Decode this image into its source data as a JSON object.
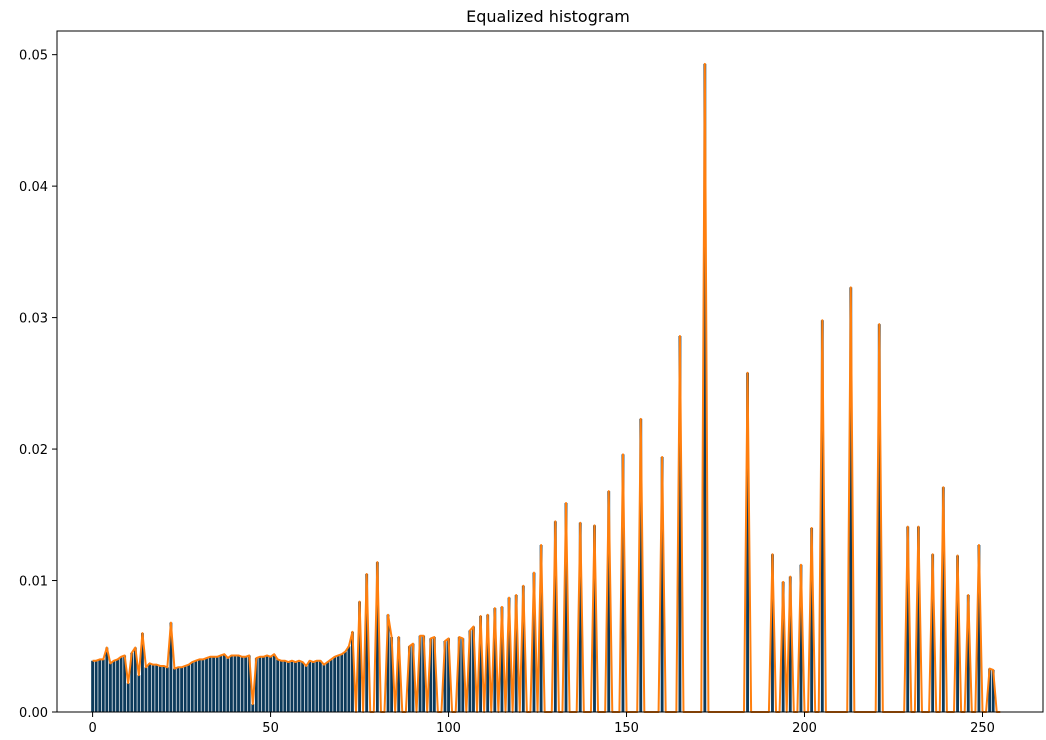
{
  "chart_data": {
    "type": "bar",
    "title": "Equalized histogram",
    "xlabel": "",
    "ylabel": "",
    "xlim": [
      -10,
      267
    ],
    "ylim": [
      0,
      0.0518
    ],
    "xticks": [
      0,
      50,
      100,
      150,
      200,
      250
    ],
    "yticks": [
      0.0,
      0.01,
      0.02,
      0.03,
      0.04,
      0.05
    ],
    "ytick_labels": [
      "0.00",
      "0.01",
      "0.02",
      "0.03",
      "0.04",
      "0.05"
    ],
    "grid": false,
    "bar_color": "#0c3a5b",
    "line_color": "#ff7f0e",
    "x": [
      0,
      1,
      2,
      3,
      4,
      5,
      6,
      7,
      8,
      9,
      10,
      11,
      12,
      13,
      14,
      15,
      16,
      17,
      18,
      19,
      20,
      21,
      22,
      23,
      24,
      25,
      26,
      27,
      28,
      29,
      30,
      31,
      32,
      33,
      34,
      35,
      36,
      37,
      38,
      39,
      40,
      41,
      42,
      43,
      44,
      45,
      46,
      47,
      48,
      49,
      50,
      51,
      52,
      53,
      54,
      55,
      56,
      57,
      58,
      59,
      60,
      61,
      62,
      63,
      64,
      65,
      66,
      67,
      68,
      69,
      70,
      71,
      72,
      73,
      74,
      75,
      76,
      77,
      78,
      79,
      80,
      81,
      82,
      83,
      84,
      85,
      86,
      87,
      88,
      89,
      90,
      91,
      92,
      93,
      94,
      95,
      96,
      97,
      98,
      99,
      100,
      101,
      102,
      103,
      104,
      105,
      106,
      107,
      108,
      109,
      110,
      111,
      112,
      113,
      114,
      115,
      116,
      117,
      118,
      119,
      120,
      121,
      122,
      123,
      124,
      125,
      126,
      127,
      128,
      129,
      130,
      131,
      132,
      133,
      134,
      135,
      136,
      137,
      138,
      139,
      140,
      141,
      142,
      143,
      144,
      145,
      146,
      147,
      148,
      149,
      150,
      151,
      152,
      153,
      154,
      155,
      156,
      157,
      158,
      159,
      160,
      161,
      162,
      163,
      164,
      165,
      166,
      167,
      168,
      169,
      170,
      171,
      172,
      173,
      174,
      175,
      176,
      177,
      178,
      179,
      180,
      181,
      182,
      183,
      184,
      185,
      186,
      187,
      188,
      189,
      190,
      191,
      192,
      193,
      194,
      195,
      196,
      197,
      198,
      199,
      200,
      201,
      202,
      203,
      204,
      205,
      206,
      207,
      208,
      209,
      210,
      211,
      212,
      213,
      214,
      215,
      216,
      217,
      218,
      219,
      220,
      221,
      222,
      223,
      224,
      225,
      226,
      227,
      228,
      229,
      230,
      231,
      232,
      233,
      234,
      235,
      236,
      237,
      238,
      239,
      240,
      241,
      242,
      243,
      244,
      245,
      246,
      247,
      248,
      249,
      250,
      251,
      252,
      253,
      254,
      255
    ],
    "values": [
      0.0039,
      0.0039,
      0.004,
      0.004,
      0.0049,
      0.0037,
      0.0039,
      0.004,
      0.0042,
      0.0043,
      0.0022,
      0.0045,
      0.0049,
      0.0028,
      0.006,
      0.0034,
      0.0037,
      0.0036,
      0.0036,
      0.0035,
      0.0035,
      0.0034,
      0.0068,
      0.0033,
      0.0034,
      0.0034,
      0.0035,
      0.0036,
      0.0038,
      0.0039,
      0.004,
      0.004,
      0.0041,
      0.0042,
      0.0042,
      0.0042,
      0.0043,
      0.0044,
      0.0041,
      0.0043,
      0.0043,
      0.0043,
      0.0042,
      0.0042,
      0.0043,
      0.0006,
      0.0041,
      0.0042,
      0.0042,
      0.0043,
      0.0042,
      0.0044,
      0.004,
      0.0039,
      0.0039,
      0.0038,
      0.0039,
      0.0038,
      0.0039,
      0.0038,
      0.0035,
      0.0039,
      0.0038,
      0.0039,
      0.0039,
      0.0036,
      0.0038,
      0.004,
      0.0042,
      0.0043,
      0.0044,
      0.0046,
      0.005,
      0.0061,
      0.0,
      0.0084,
      0.0,
      0.0105,
      0.0,
      0.0,
      0.0114,
      0.0,
      0.0,
      0.0074,
      0.0057,
      0.0,
      0.0057,
      0.0,
      0.0,
      0.005,
      0.0052,
      0.0,
      0.0058,
      0.0058,
      0.0,
      0.0056,
      0.0057,
      0.0,
      0.0,
      0.0054,
      0.0056,
      0.0,
      0.0,
      0.0057,
      0.0056,
      0.0,
      0.0062,
      0.0065,
      0.0,
      0.0073,
      0.0,
      0.0074,
      0.0,
      0.0079,
      0.0,
      0.008,
      0.0,
      0.0087,
      0.0,
      0.0089,
      0.0,
      0.0096,
      0.0,
      0.0,
      0.0106,
      0.0,
      0.0127,
      0.0,
      0.0,
      0.0,
      0.0145,
      0.0,
      0.0,
      0.0159,
      0.0,
      0.0,
      0.0,
      0.0144,
      0.0,
      0.0,
      0.0,
      0.0142,
      0.0,
      0.0,
      0.0,
      0.0168,
      0.0,
      0.0,
      0.0,
      0.0196,
      0.0,
      0.0,
      0.0,
      0.0,
      0.0223,
      0.0,
      0.0,
      0.0,
      0.0,
      0.0,
      0.0194,
      0.0,
      0.0,
      0.0,
      0.0,
      0.0286,
      0.0,
      0.0,
      0.0,
      0.0,
      0.0,
      0.0,
      0.0493,
      0.0,
      0.0,
      0.0,
      0.0,
      0.0,
      0.0,
      0.0,
      0.0,
      0.0,
      0.0,
      0.0,
      0.0258,
      0.0,
      0.0,
      0.0,
      0.0,
      0.0,
      0.0,
      0.012,
      0.0,
      0.0,
      0.0099,
      0.0,
      0.0103,
      0.0,
      0.0,
      0.0112,
      0.0,
      0.0,
      0.014,
      0.0,
      0.0,
      0.0298,
      0.0,
      0.0,
      0.0,
      0.0,
      0.0,
      0.0,
      0.0,
      0.0323,
      0.0,
      0.0,
      0.0,
      0.0,
      0.0,
      0.0,
      0.0,
      0.0295,
      0.0,
      0.0,
      0.0,
      0.0,
      0.0,
      0.0,
      0.0,
      0.0141,
      0.0,
      0.0,
      0.0141,
      0.0,
      0.0,
      0.0,
      0.012,
      0.0,
      0.0,
      0.0171,
      0.0,
      0.0,
      0.0,
      0.0119,
      0.0,
      0.0,
      0.0089,
      0.0,
      0.0,
      0.0127,
      0.0,
      0.0,
      0.0033,
      0.0032,
      0.0,
      0.0
    ]
  }
}
